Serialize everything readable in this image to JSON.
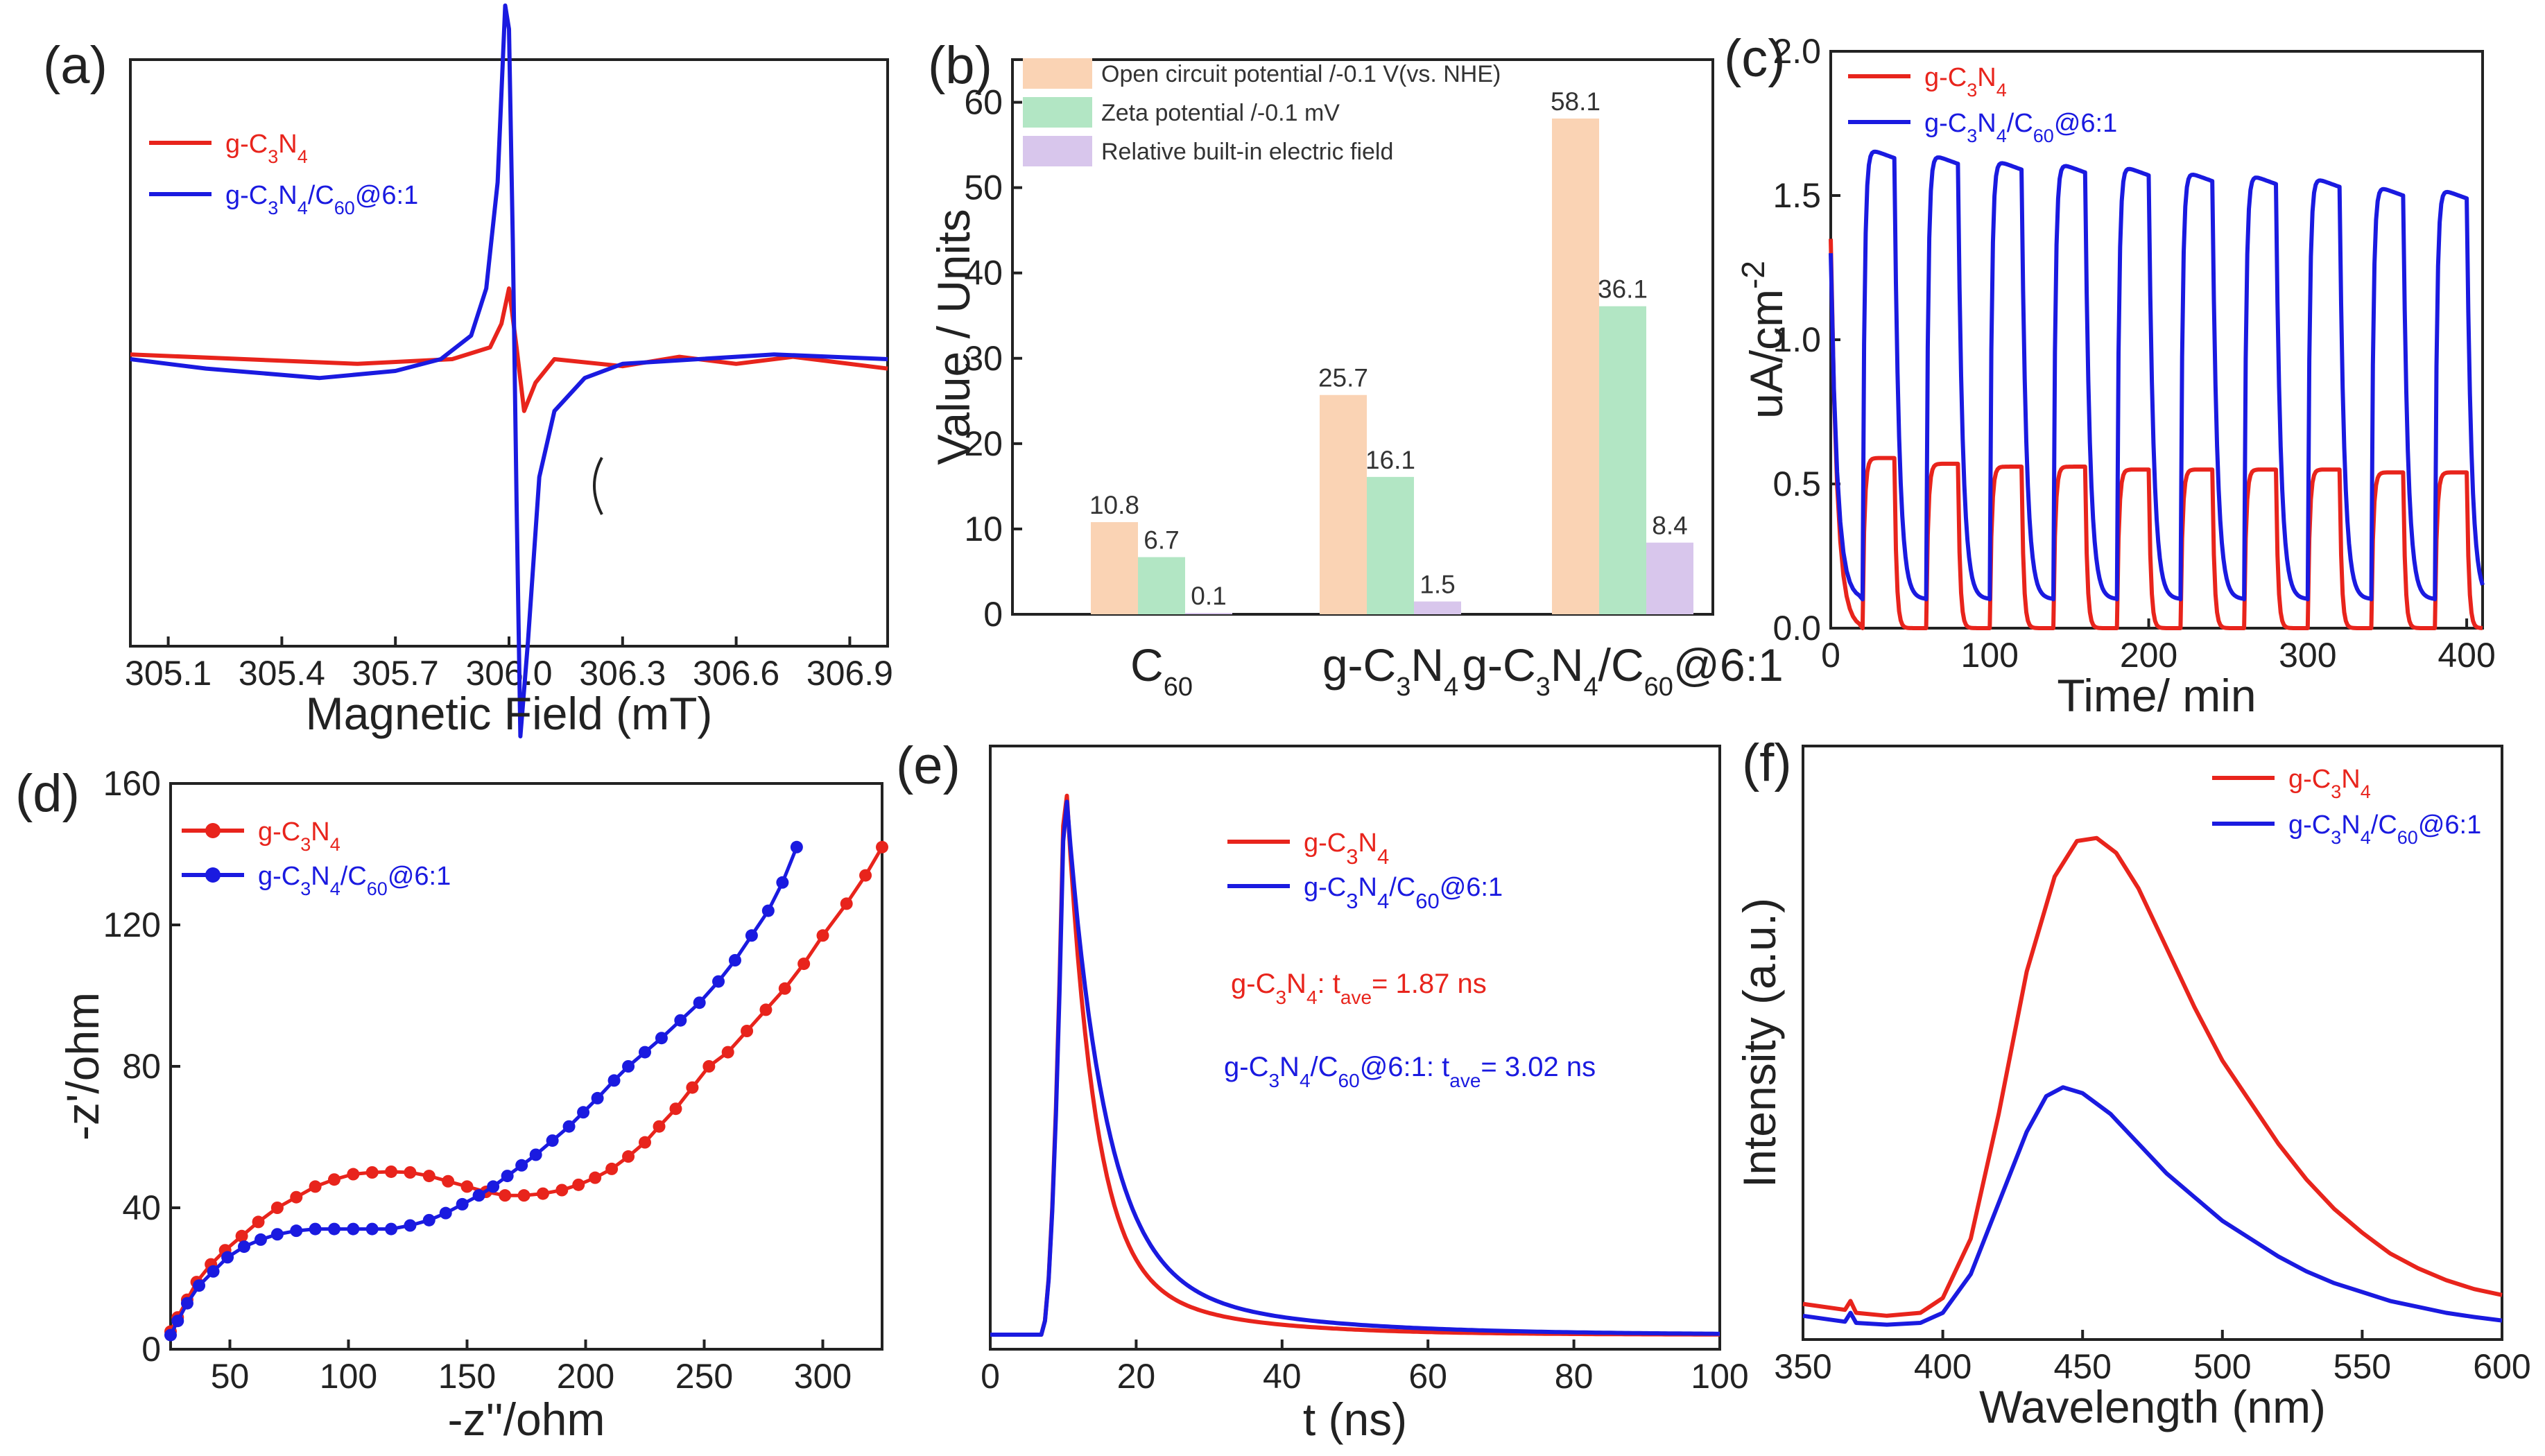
{
  "chart_data": [
    {
      "id": "a",
      "panel_label": "(a)",
      "type": "line",
      "xlabel": "Magnetic Field (mT)",
      "ylabel": "",
      "xlim": [
        305.0,
        307.0
      ],
      "xticks": [
        "305.1",
        "305.4",
        "305.7",
        "306.0",
        "306.3",
        "306.6",
        "306.9"
      ],
      "series": [
        {
          "name": "g-C3N4",
          "color": "#e8241c",
          "points": [
            [
              305.0,
              0.02
            ],
            [
              305.3,
              0.0
            ],
            [
              305.6,
              -0.02
            ],
            [
              305.85,
              0.0
            ],
            [
              305.95,
              0.05
            ],
            [
              305.98,
              0.15
            ],
            [
              306.0,
              0.3
            ],
            [
              306.02,
              0.05
            ],
            [
              306.04,
              -0.22
            ],
            [
              306.07,
              -0.1
            ],
            [
              306.12,
              0.0
            ],
            [
              306.3,
              -0.03
            ],
            [
              306.45,
              0.01
            ],
            [
              306.6,
              -0.02
            ],
            [
              306.75,
              0.01
            ],
            [
              307.0,
              -0.04
            ]
          ]
        },
        {
          "name": "g-C3N4/C60@6:1",
          "color": "#1a1ae0",
          "points": [
            [
              305.0,
              0.0
            ],
            [
              305.2,
              -0.04
            ],
            [
              305.5,
              -0.08
            ],
            [
              305.7,
              -0.05
            ],
            [
              305.82,
              0.0
            ],
            [
              305.9,
              0.1
            ],
            [
              305.94,
              0.3
            ],
            [
              305.97,
              0.75
            ],
            [
              305.99,
              1.5
            ],
            [
              306.0,
              1.4
            ],
            [
              306.01,
              0.5
            ],
            [
              306.02,
              -0.6
            ],
            [
              306.03,
              -1.6
            ],
            [
              306.05,
              -1.2
            ],
            [
              306.08,
              -0.5
            ],
            [
              306.12,
              -0.22
            ],
            [
              306.2,
              -0.08
            ],
            [
              306.3,
              -0.02
            ],
            [
              306.5,
              0.0
            ],
            [
              306.7,
              0.02
            ],
            [
              307.0,
              0.0
            ]
          ]
        }
      ]
    },
    {
      "id": "b",
      "panel_label": "(b)",
      "type": "bar",
      "ylabel": "Value / Units",
      "ylim": [
        0,
        65
      ],
      "yticks": [
        "0",
        "10",
        "20",
        "30",
        "40",
        "50",
        "60"
      ],
      "categories": [
        "C60",
        "g-C3N4",
        "g-C3N4/C60@6:1"
      ],
      "series": [
        {
          "name": "Open circuit potential /-0.1 V(vs. NHE)",
          "color": "#fad3b4",
          "values": [
            10.8,
            25.7,
            58.1
          ],
          "labels": [
            "10.8",
            "25.7",
            "58.1"
          ]
        },
        {
          "name": "Zeta potential /-0.1 mV",
          "color": "#b2e6c4",
          "values": [
            6.7,
            16.1,
            36.1
          ],
          "labels": [
            "6.7",
            "16.1",
            "36.1"
          ]
        },
        {
          "name": "Relative built-in electric field",
          "color": "#d8c6ec",
          "values": [
            0.1,
            1.5,
            8.4
          ],
          "labels": [
            "0.1",
            "1.5",
            "8.4"
          ]
        }
      ]
    },
    {
      "id": "c",
      "panel_label": "(c)",
      "type": "line",
      "xlabel": "Time/ min",
      "ylabel": "uA/cm-2",
      "xlim": [
        0,
        410
      ],
      "ylim": [
        0,
        2.0
      ],
      "xticks": [
        "0",
        "100",
        "200",
        "300",
        "400"
      ],
      "yticks": [
        "0.0",
        "0.5",
        "1.0",
        "1.5",
        "2.0"
      ],
      "series": [
        {
          "name": "g-C3N4",
          "color": "#e8241c",
          "on_levels": [
            0.59,
            0.57,
            0.56,
            0.56,
            0.55,
            0.55,
            0.55,
            0.55,
            0.54,
            0.54
          ],
          "off_level": 0.0,
          "start_value": 1.35
        },
        {
          "name": "g-C3N4/C60@6:1",
          "color": "#1a1ae0",
          "on_levels": [
            1.67,
            1.65,
            1.63,
            1.62,
            1.61,
            1.59,
            1.58,
            1.57,
            1.54,
            1.53
          ],
          "off_level": 0.1,
          "start_value": 1.3
        }
      ]
    },
    {
      "id": "d",
      "panel_label": "(d)",
      "type": "scatter",
      "xlabel": "-z''/ohm",
      "ylabel": "-z'/ohm",
      "xlim": [
        25,
        325
      ],
      "ylim": [
        0,
        160
      ],
      "xticks": [
        "50",
        "100",
        "150",
        "200",
        "250",
        "300"
      ],
      "yticks": [
        "0",
        "40",
        "80",
        "120",
        "160"
      ],
      "series": [
        {
          "name": "g-C3N4",
          "color": "#e8241c",
          "points": [
            [
              25,
              5
            ],
            [
              28,
              9
            ],
            [
              32,
              14
            ],
            [
              36,
              19
            ],
            [
              42,
              24
            ],
            [
              48,
              28
            ],
            [
              55,
              32
            ],
            [
              62,
              36
            ],
            [
              70,
              40
            ],
            [
              78,
              43
            ],
            [
              86,
              46
            ],
            [
              94,
              48
            ],
            [
              102,
              49.5
            ],
            [
              110,
              50
            ],
            [
              118,
              50.2
            ],
            [
              126,
              50
            ],
            [
              134,
              49
            ],
            [
              142,
              47.5
            ],
            [
              150,
              46
            ],
            [
              158,
              44.5
            ],
            [
              166,
              43.5
            ],
            [
              174,
              43.5
            ],
            [
              182,
              44
            ],
            [
              190,
              45
            ],
            [
              197,
              46.5
            ],
            [
              204,
              48.5
            ],
            [
              211,
              51
            ],
            [
              218,
              54.5
            ],
            [
              225,
              58.5
            ],
            [
              231,
              63
            ],
            [
              238,
              68
            ],
            [
              245,
              74
            ],
            [
              252,
              80
            ],
            [
              260,
              84
            ],
            [
              268,
              90
            ],
            [
              276,
              96
            ],
            [
              284,
              102
            ],
            [
              292,
              109
            ],
            [
              300,
              117
            ],
            [
              310,
              126
            ],
            [
              318,
              134
            ],
            [
              325,
              142
            ]
          ]
        },
        {
          "name": "g-C3N4/C60@6:1",
          "color": "#1a1ae0",
          "points": [
            [
              25,
              4
            ],
            [
              28,
              8
            ],
            [
              32,
              13
            ],
            [
              37,
              18
            ],
            [
              43,
              22
            ],
            [
              49,
              26
            ],
            [
              56,
              29
            ],
            [
              63,
              31
            ],
            [
              70,
              32.5
            ],
            [
              78,
              33.5
            ],
            [
              86,
              34
            ],
            [
              94,
              34
            ],
            [
              102,
              34
            ],
            [
              110,
              34
            ],
            [
              118,
              34
            ],
            [
              126,
              35
            ],
            [
              134,
              36.5
            ],
            [
              141,
              38.5
            ],
            [
              148,
              41
            ],
            [
              155,
              43.5
            ],
            [
              161,
              46
            ],
            [
              167,
              49
            ],
            [
              173,
              52
            ],
            [
              179,
              55
            ],
            [
              186,
              59
            ],
            [
              193,
              63
            ],
            [
              199,
              67
            ],
            [
              205,
              71
            ],
            [
              212,
              76
            ],
            [
              218,
              80
            ],
            [
              225,
              84
            ],
            [
              232,
              88
            ],
            [
              240,
              93
            ],
            [
              248,
              98
            ],
            [
              256,
              104
            ],
            [
              263,
              110
            ],
            [
              270,
              117
            ],
            [
              277,
              124
            ],
            [
              283,
              132
            ],
            [
              289,
              142
            ]
          ]
        }
      ]
    },
    {
      "id": "e",
      "panel_label": "(e)",
      "type": "line",
      "xlabel": "t  (ns)",
      "ylabel": "",
      "xlim": [
        0,
        100
      ],
      "xticks": [
        "0",
        "20",
        "40",
        "60",
        "80",
        "100"
      ],
      "series": [
        {
          "name": "g-C3N4",
          "color": "#e8241c",
          "peak_x": 10.2,
          "peak": 1.0,
          "tau": 3.8
        },
        {
          "name": "g-C3N4/C60@6:1",
          "color": "#1a1ae0",
          "peak_x": 10.2,
          "peak": 0.97,
          "tau": 5.2
        }
      ],
      "annotations": [
        {
          "text": "g-C3N4: tave=  1.87 ns",
          "color": "#e8241c"
        },
        {
          "text": "g-C3N4/C60@6:1: tave=  3.02 ns",
          "color": "#1a1ae0"
        }
      ]
    },
    {
      "id": "f",
      "panel_label": "(f)",
      "type": "line",
      "xlabel": "Wavelength (nm)",
      "ylabel": "Intensity (a.u.)",
      "xlim": [
        350,
        600
      ],
      "xticks": [
        "350",
        "400",
        "450",
        "500",
        "550",
        "600"
      ],
      "series": [
        {
          "name": "g-C3N4",
          "color": "#e8241c",
          "points": [
            [
              350,
              0.06
            ],
            [
              365,
              0.05
            ],
            [
              367,
              0.065
            ],
            [
              369,
              0.045
            ],
            [
              380,
              0.04
            ],
            [
              392,
              0.045
            ],
            [
              400,
              0.07
            ],
            [
              410,
              0.17
            ],
            [
              420,
              0.38
            ],
            [
              430,
              0.62
            ],
            [
              440,
              0.78
            ],
            [
              448,
              0.84
            ],
            [
              455,
              0.845
            ],
            [
              462,
              0.82
            ],
            [
              470,
              0.76
            ],
            [
              480,
              0.66
            ],
            [
              490,
              0.56
            ],
            [
              500,
              0.47
            ],
            [
              510,
              0.4
            ],
            [
              520,
              0.33
            ],
            [
              530,
              0.27
            ],
            [
              540,
              0.22
            ],
            [
              550,
              0.18
            ],
            [
              560,
              0.145
            ],
            [
              570,
              0.12
            ],
            [
              580,
              0.1
            ],
            [
              590,
              0.085
            ],
            [
              600,
              0.075
            ]
          ]
        },
        {
          "name": "g-C3N4/C60@6:1",
          "color": "#1a1ae0",
          "points": [
            [
              350,
              0.04
            ],
            [
              365,
              0.03
            ],
            [
              367,
              0.045
            ],
            [
              369,
              0.028
            ],
            [
              380,
              0.025
            ],
            [
              392,
              0.028
            ],
            [
              400,
              0.045
            ],
            [
              410,
              0.11
            ],
            [
              420,
              0.23
            ],
            [
              430,
              0.35
            ],
            [
              437,
              0.41
            ],
            [
              443,
              0.425
            ],
            [
              450,
              0.415
            ],
            [
              460,
              0.38
            ],
            [
              470,
              0.33
            ],
            [
              480,
              0.28
            ],
            [
              490,
              0.24
            ],
            [
              500,
              0.2
            ],
            [
              510,
              0.17
            ],
            [
              520,
              0.14
            ],
            [
              530,
              0.115
            ],
            [
              540,
              0.095
            ],
            [
              550,
              0.08
            ],
            [
              560,
              0.065
            ],
            [
              570,
              0.055
            ],
            [
              580,
              0.045
            ],
            [
              590,
              0.038
            ],
            [
              600,
              0.032
            ]
          ]
        }
      ]
    }
  ]
}
